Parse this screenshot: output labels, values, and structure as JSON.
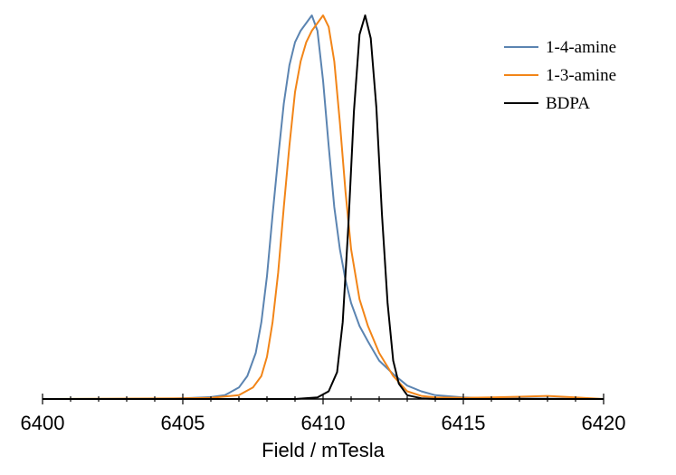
{
  "chart_data": {
    "type": "line",
    "title": "",
    "xlabel": "Field / mTesla",
    "ylabel": "",
    "xlim": [
      6400,
      6420
    ],
    "ylim": [
      0,
      1.0
    ],
    "x_ticks": [
      6400,
      6405,
      6410,
      6415,
      6420
    ],
    "x_tick_labels": [
      "6400",
      "6405",
      "6410",
      "6415",
      "6420"
    ],
    "grid": false,
    "legend_position": "top-right",
    "series": [
      {
        "name": "1-4-amine",
        "color": "#5b84b1",
        "points": [
          [
            6400,
            0.0
          ],
          [
            6404,
            0.0
          ],
          [
            6405,
            0.002
          ],
          [
            6406,
            0.005
          ],
          [
            6406.5,
            0.01
          ],
          [
            6407,
            0.03
          ],
          [
            6407.3,
            0.06
          ],
          [
            6407.6,
            0.12
          ],
          [
            6407.8,
            0.2
          ],
          [
            6408,
            0.32
          ],
          [
            6408.2,
            0.48
          ],
          [
            6408.4,
            0.63
          ],
          [
            6408.6,
            0.77
          ],
          [
            6408.8,
            0.87
          ],
          [
            6409,
            0.93
          ],
          [
            6409.2,
            0.96
          ],
          [
            6409.4,
            0.98
          ],
          [
            6409.6,
            1.0
          ],
          [
            6409.8,
            0.96
          ],
          [
            6410,
            0.83
          ],
          [
            6410.2,
            0.66
          ],
          [
            6410.4,
            0.5
          ],
          [
            6410.6,
            0.39
          ],
          [
            6410.8,
            0.31
          ],
          [
            6411,
            0.25
          ],
          [
            6411.3,
            0.19
          ],
          [
            6411.6,
            0.15
          ],
          [
            6412,
            0.1
          ],
          [
            6412.5,
            0.065
          ],
          [
            6413,
            0.035
          ],
          [
            6413.5,
            0.02
          ],
          [
            6414,
            0.01
          ],
          [
            6415,
            0.004
          ],
          [
            6416,
            0.002
          ],
          [
            6420,
            0.0
          ]
        ]
      },
      {
        "name": "1-3-amine",
        "color": "#f28518",
        "points": [
          [
            6400,
            0.0
          ],
          [
            6405,
            0.002
          ],
          [
            6406,
            0.003
          ],
          [
            6407,
            0.01
          ],
          [
            6407.5,
            0.03
          ],
          [
            6407.8,
            0.06
          ],
          [
            6408,
            0.11
          ],
          [
            6408.2,
            0.2
          ],
          [
            6408.4,
            0.33
          ],
          [
            6408.6,
            0.5
          ],
          [
            6408.8,
            0.66
          ],
          [
            6409,
            0.8
          ],
          [
            6409.2,
            0.88
          ],
          [
            6409.4,
            0.93
          ],
          [
            6409.6,
            0.96
          ],
          [
            6409.8,
            0.98
          ],
          [
            6410,
            1.0
          ],
          [
            6410.2,
            0.97
          ],
          [
            6410.4,
            0.88
          ],
          [
            6410.6,
            0.72
          ],
          [
            6410.8,
            0.54
          ],
          [
            6411,
            0.39
          ],
          [
            6411.3,
            0.26
          ],
          [
            6411.6,
            0.19
          ],
          [
            6412,
            0.12
          ],
          [
            6412.5,
            0.06
          ],
          [
            6413,
            0.02
          ],
          [
            6413.5,
            0.008
          ],
          [
            6414,
            0.004
          ],
          [
            6415,
            0.003
          ],
          [
            6416,
            0.004
          ],
          [
            6417,
            0.006
          ],
          [
            6418,
            0.008
          ],
          [
            6419,
            0.004
          ],
          [
            6420,
            0.0
          ]
        ]
      },
      {
        "name": "BDPA",
        "color": "#000000",
        "points": [
          [
            6400,
            0.0
          ],
          [
            6409,
            0.0
          ],
          [
            6409.8,
            0.004
          ],
          [
            6410.2,
            0.02
          ],
          [
            6410.5,
            0.07
          ],
          [
            6410.7,
            0.2
          ],
          [
            6410.9,
            0.45
          ],
          [
            6411.1,
            0.75
          ],
          [
            6411.3,
            0.95
          ],
          [
            6411.5,
            1.0
          ],
          [
            6411.7,
            0.94
          ],
          [
            6411.9,
            0.76
          ],
          [
            6412.1,
            0.48
          ],
          [
            6412.3,
            0.25
          ],
          [
            6412.5,
            0.1
          ],
          [
            6412.7,
            0.04
          ],
          [
            6413,
            0.01
          ],
          [
            6413.5,
            0.002
          ],
          [
            6414,
            0.0
          ],
          [
            6420,
            0.0
          ]
        ]
      }
    ]
  }
}
